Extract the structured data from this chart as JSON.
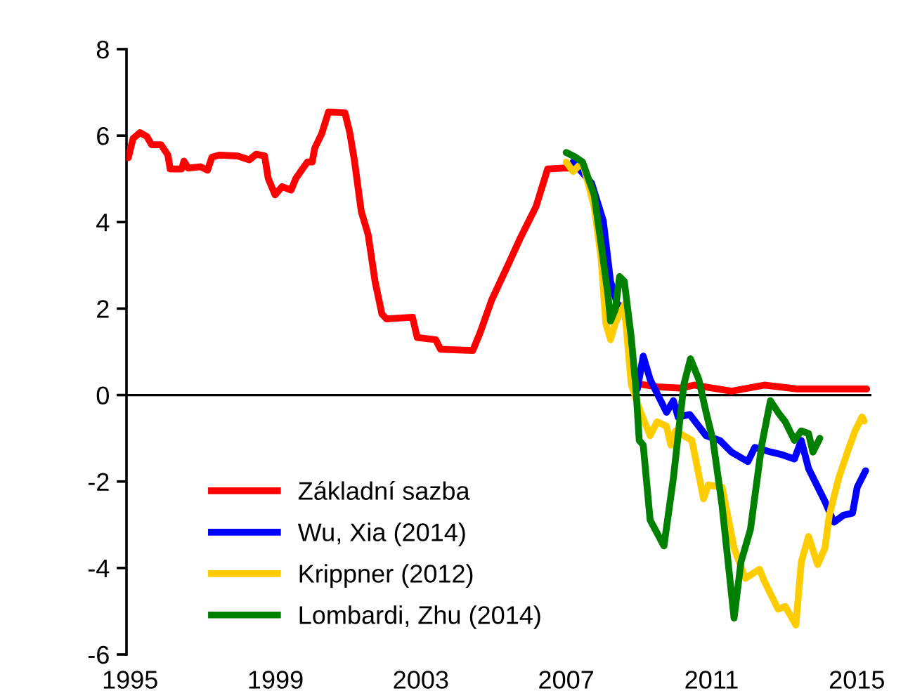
{
  "chart_data": {
    "type": "line",
    "xlim": [
      1994.9,
      2015.4
    ],
    "xticks": [
      1995,
      1999,
      2003,
      2007,
      2011,
      2015
    ],
    "ylim": [
      -6,
      8
    ],
    "yticks": [
      -6,
      -4,
      -2,
      0,
      2,
      4,
      6,
      8
    ],
    "grid": false,
    "legend": "lower left",
    "line_style": "solid",
    "marker": "none",
    "ref_lines": [
      {
        "axis": "y",
        "value": 0,
        "color": "#000000"
      }
    ],
    "series": [
      {
        "name": "Základní sazba",
        "color": "#ff0000",
        "x": [
          1994.95,
          1995.08,
          1995.27,
          1995.46,
          1995.59,
          1995.85,
          1996.04,
          1996.1,
          1996.42,
          1996.48,
          1996.6,
          1996.93,
          1997.13,
          1997.25,
          1997.45,
          1997.96,
          1998.28,
          1998.47,
          1998.7,
          1998.8,
          1998.99,
          1999.18,
          1999.43,
          1999.56,
          1999.76,
          1999.88,
          2000.01,
          2000.08,
          2000.27,
          2000.46,
          2000.91,
          2001.04,
          2001.17,
          2001.36,
          2001.55,
          2001.74,
          2001.93,
          2002.06,
          2002.77,
          2002.9,
          2003.41,
          2003.54,
          2004.43,
          2004.63,
          2004.95,
          2005.4,
          2005.72,
          2006.17,
          2006.49,
          2006.93,
          2007.19,
          2007.6,
          2008.0,
          2008.4,
          2008.7,
          2009.05,
          2009.5,
          2010.14,
          2010.52,
          2011.55,
          2012.45,
          2013.35,
          2015.27
        ],
        "values": [
          5.49,
          5.93,
          6.07,
          5.98,
          5.79,
          5.79,
          5.55,
          5.23,
          5.23,
          5.41,
          5.25,
          5.28,
          5.2,
          5.5,
          5.55,
          5.53,
          5.44,
          5.57,
          5.53,
          5.01,
          4.63,
          4.82,
          4.74,
          5.01,
          5.25,
          5.39,
          5.39,
          5.71,
          6.04,
          6.55,
          6.53,
          6.09,
          5.44,
          4.25,
          3.71,
          2.63,
          1.87,
          1.76,
          1.8,
          1.33,
          1.28,
          1.06,
          1.03,
          1.44,
          2.2,
          3.01,
          3.6,
          4.36,
          5.23,
          5.25,
          5.25,
          null,
          null,
          null,
          null,
          0.25,
          0.19,
          0.16,
          0.23,
          0.09,
          0.23,
          0.14,
          0.14
        ]
      },
      {
        "name": "Wu, Xia (2014)",
        "color": "#0000ff",
        "x": [
          2007.19,
          2007.7,
          2008.02,
          2008.22,
          2008.41,
          2008.6,
          2008.79,
          2008.96,
          2009.12,
          2009.31,
          2009.76,
          2009.95,
          2010.08,
          2010.4,
          2010.85,
          2011.23,
          2011.55,
          2012.0,
          2012.19,
          2012.64,
          2012.9,
          2013.28,
          2013.47,
          2013.67,
          2014.12,
          2014.37,
          2014.63,
          2014.88,
          2015.01,
          2015.24
        ],
        "values": [
          5.39,
          4.9,
          4.03,
          2.63,
          2.09,
          2.03,
          0.79,
          0.14,
          0.9,
          0.36,
          -0.4,
          -0.13,
          -0.51,
          -0.45,
          -0.94,
          -1.05,
          -1.32,
          -1.54,
          -1.21,
          -1.32,
          -1.37,
          -1.48,
          -1.05,
          -1.7,
          -2.46,
          -2.94,
          -2.78,
          -2.73,
          -2.13,
          -1.75
        ]
      },
      {
        "name": "Krippner (2012)",
        "color": "#ffcc00",
        "x": [
          2007.0,
          2007.19,
          2007.45,
          2007.77,
          2007.96,
          2008.09,
          2008.22,
          2008.35,
          2008.6,
          2008.79,
          2009.05,
          2009.31,
          2009.5,
          2009.76,
          2009.88,
          2010.01,
          2010.46,
          2010.78,
          2010.91,
          2011.29,
          2011.62,
          2011.93,
          2012.32,
          2012.45,
          2012.83,
          2013.03,
          2013.32,
          2013.47,
          2013.67,
          2013.92,
          2014.12,
          2014.24,
          2014.5,
          2014.76,
          2014.95,
          2015.14,
          2015.2
        ],
        "values": [
          5.39,
          5.17,
          5.39,
          4.36,
          3.17,
          1.66,
          1.28,
          1.66,
          2.09,
          0.25,
          -0.4,
          -0.94,
          -0.62,
          -0.72,
          -1.16,
          -0.83,
          -1.05,
          -2.4,
          -2.08,
          -2.13,
          -3.54,
          -4.24,
          -4.03,
          -4.3,
          -4.95,
          -4.89,
          -5.32,
          -3.86,
          -3.27,
          -3.92,
          -3.54,
          -2.78,
          -1.92,
          -1.27,
          -0.83,
          -0.51,
          -0.6
        ]
      },
      {
        "name": "Lombardi, Zhu (2014)",
        "color": "#008000",
        "x": [
          2007.0,
          2007.26,
          2007.45,
          2007.77,
          2007.96,
          2008.15,
          2008.22,
          2008.35,
          2008.47,
          2008.6,
          2008.79,
          2008.92,
          2009.01,
          2009.12,
          2009.31,
          2009.69,
          2009.95,
          2010.08,
          2010.24,
          2010.42,
          2010.65,
          2010.85,
          2011.04,
          2011.29,
          2011.62,
          2011.81,
          2012.07,
          2012.38,
          2012.62,
          2012.83,
          2013.03,
          2013.28,
          2013.47,
          2013.67,
          2013.79,
          2013.98
        ],
        "values": [
          5.61,
          5.5,
          5.39,
          4.63,
          3.5,
          2.31,
          1.71,
          1.98,
          2.74,
          2.63,
          1.33,
          0.14,
          -1.05,
          -1.16,
          -2.89,
          -3.49,
          -1.92,
          -0.94,
          0.25,
          0.84,
          0.36,
          -0.4,
          -1.05,
          -2.56,
          -5.16,
          -3.86,
          -3.11,
          -1.16,
          -0.13,
          -0.4,
          -0.62,
          -1.05,
          -0.83,
          -0.89,
          -1.32,
          -1.0
        ]
      }
    ]
  }
}
